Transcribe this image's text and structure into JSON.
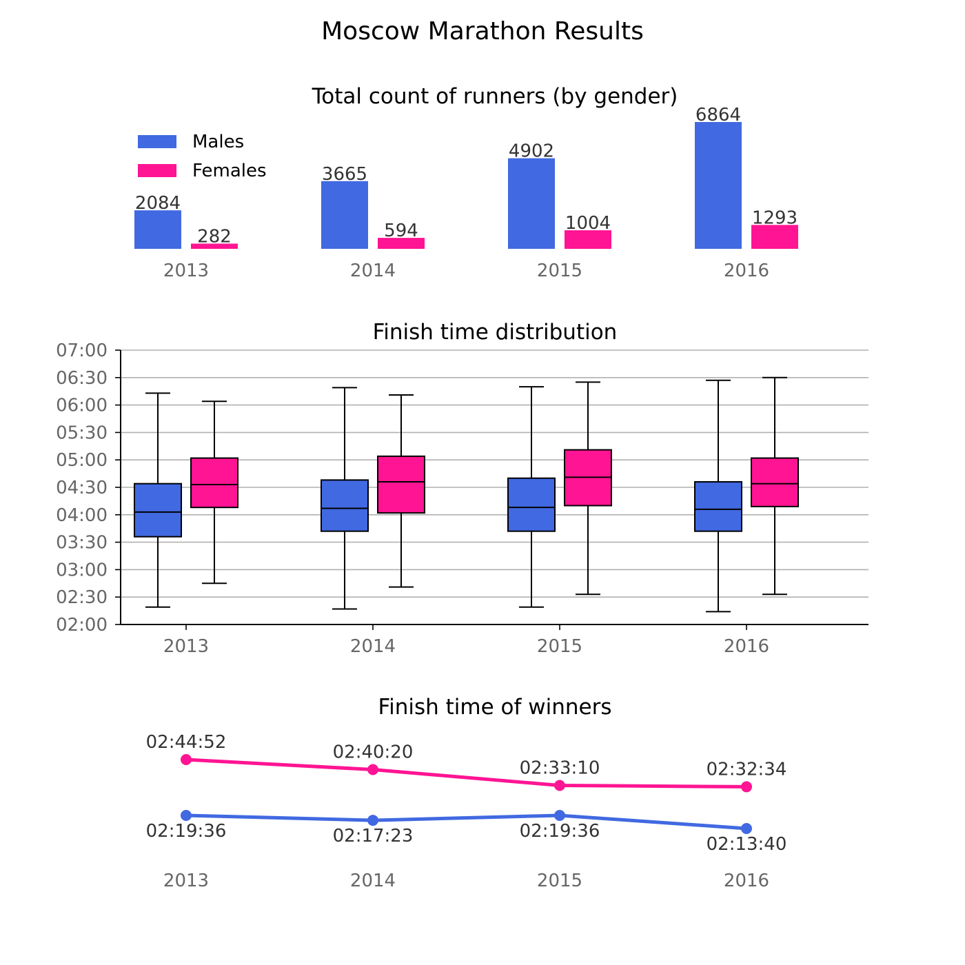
{
  "chart_data": {
    "title": "Moscow Marathon Results",
    "colors": {
      "males": "#4169e1",
      "females": "#ff1493"
    },
    "legend": {
      "placement": "top-left",
      "males": "Males",
      "females": "Females"
    },
    "counts": {
      "type": "bar",
      "title": "Total count of runners (by gender)",
      "categories": [
        "2013",
        "2014",
        "2015",
        "2016"
      ],
      "series": [
        {
          "name": "Males",
          "values": [
            2084,
            3665,
            4902,
            6864
          ]
        },
        {
          "name": "Females",
          "values": [
            282,
            594,
            1004,
            1293
          ]
        }
      ]
    },
    "distribution": {
      "type": "boxplot",
      "title": "Finish time distribution",
      "categories": [
        "2013",
        "2014",
        "2015",
        "2016"
      ],
      "yticks": [
        "02:00",
        "02:30",
        "03:00",
        "03:30",
        "04:00",
        "04:30",
        "05:00",
        "05:30",
        "06:00",
        "06:30",
        "07:00"
      ],
      "ylim_minutes": [
        120,
        420
      ],
      "grid": true,
      "series": [
        {
          "name": "Males",
          "boxes": [
            {
              "min": 139,
              "q1": 216,
              "median": 243,
              "q3": 274,
              "max": 373
            },
            {
              "min": 137,
              "q1": 222,
              "median": 247,
              "q3": 278,
              "max": 379
            },
            {
              "min": 139,
              "q1": 222,
              "median": 248,
              "q3": 280,
              "max": 380
            },
            {
              "min": 134,
              "q1": 222,
              "median": 246,
              "q3": 276,
              "max": 387
            }
          ]
        },
        {
          "name": "Females",
          "boxes": [
            {
              "min": 165,
              "q1": 248,
              "median": 273,
              "q3": 302,
              "max": 364
            },
            {
              "min": 161,
              "q1": 242,
              "median": 276,
              "q3": 304,
              "max": 371
            },
            {
              "min": 153,
              "q1": 250,
              "median": 281,
              "q3": 311,
              "max": 385
            },
            {
              "min": 153,
              "q1": 249,
              "median": 274,
              "q3": 302,
              "max": 390
            }
          ]
        }
      ]
    },
    "winners": {
      "type": "line",
      "title": "Finish time of winners",
      "categories": [
        "2013",
        "2014",
        "2015",
        "2016"
      ],
      "series": [
        {
          "name": "Males",
          "labels": [
            "02:19:36",
            "02:17:23",
            "02:19:36",
            "02:13:40"
          ],
          "seconds": [
            8376,
            8243,
            8376,
            8020
          ]
        },
        {
          "name": "Females",
          "labels": [
            "02:44:52",
            "02:40:20",
            "02:33:10",
            "02:32:34"
          ],
          "seconds": [
            9892,
            9620,
            9190,
            9154
          ]
        }
      ]
    }
  }
}
